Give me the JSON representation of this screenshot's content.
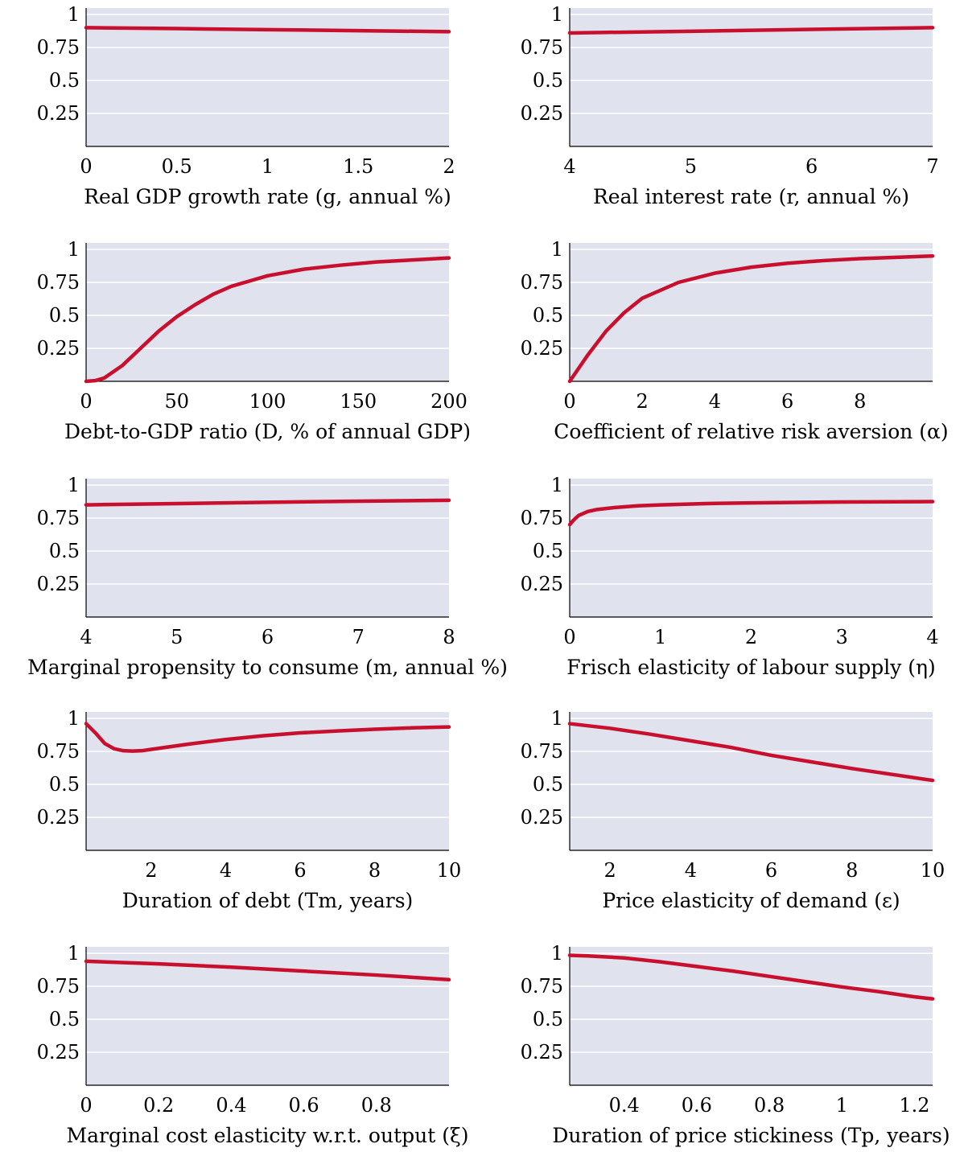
{
  "colors": {
    "line": "#c8102e",
    "panel_bg": "#e0e2ee",
    "grid": "#ffffff"
  },
  "chart_data": [
    {
      "type": "line",
      "xlabel": "Real GDP growth rate (g, annual %)",
      "xlim": [
        0,
        2
      ],
      "ylim": [
        0,
        1
      ],
      "x_ticks": [
        0,
        0.5,
        1,
        1.5,
        2
      ],
      "x_tick_labels": [
        "0",
        "0.5",
        "1",
        "1.5",
        "2"
      ],
      "y_ticks": [
        0.25,
        0.5,
        0.75,
        1
      ],
      "y_tick_labels": [
        "0.25",
        "0.5",
        "0.75",
        "1"
      ],
      "grid": true,
      "series": [
        {
          "x": [
            0,
            0.5,
            1,
            1.5,
            2
          ],
          "y": [
            0.9,
            0.893,
            0.885,
            0.877,
            0.87
          ]
        }
      ]
    },
    {
      "type": "line",
      "xlabel": "Real interest rate (r, annual %)",
      "xlim": [
        4,
        7
      ],
      "ylim": [
        0,
        1
      ],
      "x_ticks": [
        4,
        5,
        6,
        7
      ],
      "x_tick_labels": [
        "4",
        "5",
        "6",
        "7"
      ],
      "y_ticks": [
        0.25,
        0.5,
        0.75,
        1
      ],
      "y_tick_labels": [
        "0.25",
        "0.5",
        "0.75",
        "1"
      ],
      "grid": true,
      "series": [
        {
          "x": [
            4,
            5,
            6,
            7
          ],
          "y": [
            0.86,
            0.873,
            0.887,
            0.9
          ]
        }
      ]
    },
    {
      "type": "line",
      "xlabel": "Debt-to-GDP ratio (D, % of annual GDP)",
      "xlim": [
        0,
        200
      ],
      "ylim": [
        0,
        1
      ],
      "x_ticks": [
        0,
        50,
        100,
        150,
        200
      ],
      "x_tick_labels": [
        "0",
        "50",
        "100",
        "150",
        "200"
      ],
      "y_ticks": [
        0.25,
        0.5,
        0.75,
        1
      ],
      "y_tick_labels": [
        "0.25",
        "0.5",
        "0.75",
        "1"
      ],
      "grid": true,
      "series": [
        {
          "x": [
            0,
            5,
            10,
            20,
            30,
            40,
            50,
            60,
            70,
            80,
            90,
            100,
            120,
            140,
            160,
            180,
            200
          ],
          "y": [
            0,
            0.005,
            0.025,
            0.12,
            0.25,
            0.38,
            0.49,
            0.58,
            0.66,
            0.72,
            0.76,
            0.8,
            0.85,
            0.88,
            0.905,
            0.92,
            0.935
          ]
        }
      ]
    },
    {
      "type": "line",
      "xlabel": "Coefficient of relative risk aversion (α)",
      "xlim": [
        0,
        10
      ],
      "ylim": [
        0,
        1
      ],
      "x_ticks": [
        0,
        2,
        4,
        6,
        8
      ],
      "x_tick_labels": [
        "0",
        "2",
        "4",
        "6",
        "8"
      ],
      "y_ticks": [
        0.25,
        0.5,
        0.75,
        1
      ],
      "y_tick_labels": [
        "0.25",
        "0.5",
        "0.75",
        "1"
      ],
      "grid": true,
      "series": [
        {
          "x": [
            0,
            0.25,
            0.5,
            1,
            1.5,
            2,
            3,
            4,
            5,
            6,
            7,
            8,
            9,
            10
          ],
          "y": [
            0,
            0.1,
            0.2,
            0.38,
            0.52,
            0.63,
            0.75,
            0.82,
            0.865,
            0.895,
            0.915,
            0.93,
            0.94,
            0.95
          ]
        }
      ]
    },
    {
      "type": "line",
      "xlabel": "Marginal propensity to consume (m, annual %)",
      "xlim": [
        4,
        8
      ],
      "ylim": [
        0,
        1
      ],
      "x_ticks": [
        4,
        5,
        6,
        7,
        8
      ],
      "x_tick_labels": [
        "4",
        "5",
        "6",
        "7",
        "8"
      ],
      "y_ticks": [
        0.25,
        0.5,
        0.75,
        1
      ],
      "y_tick_labels": [
        "0.25",
        "0.5",
        "0.75",
        "1"
      ],
      "grid": true,
      "series": [
        {
          "x": [
            4,
            5,
            6,
            7,
            8
          ],
          "y": [
            0.85,
            0.86,
            0.87,
            0.878,
            0.885
          ]
        }
      ]
    },
    {
      "type": "line",
      "xlabel": "Frisch elasticity of labour supply (η)",
      "xlim": [
        0,
        4
      ],
      "ylim": [
        0,
        1
      ],
      "x_ticks": [
        0,
        1,
        2,
        3,
        4
      ],
      "x_tick_labels": [
        "0",
        "1",
        "2",
        "3",
        "4"
      ],
      "y_ticks": [
        0.25,
        0.5,
        0.75,
        1
      ],
      "y_tick_labels": [
        "0.25",
        "0.5",
        "0.75",
        "1"
      ],
      "grid": true,
      "series": [
        {
          "x": [
            0,
            0.05,
            0.1,
            0.2,
            0.3,
            0.5,
            0.75,
            1,
            1.5,
            2,
            3,
            4
          ],
          "y": [
            0.7,
            0.74,
            0.77,
            0.8,
            0.815,
            0.83,
            0.843,
            0.85,
            0.86,
            0.865,
            0.872,
            0.875
          ]
        }
      ]
    },
    {
      "type": "line",
      "xlabel": "Duration of debt (Tm, years)",
      "xlim": [
        0.25,
        10
      ],
      "ylim": [
        0,
        1
      ],
      "x_ticks": [
        2,
        4,
        6,
        8,
        10
      ],
      "x_tick_labels": [
        "2",
        "4",
        "6",
        "8",
        "10"
      ],
      "y_ticks": [
        0.25,
        0.5,
        0.75,
        1
      ],
      "y_tick_labels": [
        "0.25",
        "0.5",
        "0.75",
        "1"
      ],
      "grid": true,
      "series": [
        {
          "x": [
            0.25,
            0.5,
            0.75,
            1,
            1.25,
            1.5,
            1.75,
            2,
            3,
            4,
            5,
            6,
            7,
            8,
            9,
            10
          ],
          "y": [
            0.96,
            0.89,
            0.81,
            0.77,
            0.755,
            0.752,
            0.755,
            0.765,
            0.805,
            0.84,
            0.868,
            0.89,
            0.905,
            0.918,
            0.928,
            0.935
          ]
        }
      ]
    },
    {
      "type": "line",
      "xlabel": "Price elasticity of demand (ε)",
      "xlim": [
        1,
        10
      ],
      "ylim": [
        0,
        1
      ],
      "x_ticks": [
        2,
        4,
        6,
        8,
        10
      ],
      "x_tick_labels": [
        "2",
        "4",
        "6",
        "8",
        "10"
      ],
      "y_ticks": [
        0.25,
        0.5,
        0.75,
        1
      ],
      "y_tick_labels": [
        "0.25",
        "0.5",
        "0.75",
        "1"
      ],
      "grid": true,
      "series": [
        {
          "x": [
            1,
            2,
            3,
            4,
            5,
            6,
            7,
            8,
            9,
            10
          ],
          "y": [
            0.96,
            0.925,
            0.88,
            0.83,
            0.78,
            0.72,
            0.67,
            0.62,
            0.575,
            0.53
          ]
        }
      ]
    },
    {
      "type": "line",
      "xlabel": "Marginal cost elasticity w.r.t. output (ξ)",
      "xlim": [
        0,
        1
      ],
      "ylim": [
        0,
        1
      ],
      "x_ticks": [
        0,
        0.2,
        0.4,
        0.6,
        0.8
      ],
      "x_tick_labels": [
        "0",
        "0.2",
        "0.4",
        "0.6",
        "0.8"
      ],
      "y_ticks": [
        0.25,
        0.5,
        0.75,
        1
      ],
      "y_tick_labels": [
        "0.25",
        "0.5",
        "0.75",
        "1"
      ],
      "grid": true,
      "series": [
        {
          "x": [
            0,
            0.2,
            0.4,
            0.6,
            0.8,
            1
          ],
          "y": [
            0.94,
            0.92,
            0.895,
            0.865,
            0.835,
            0.8
          ]
        }
      ]
    },
    {
      "type": "line",
      "xlabel": "Duration of price stickiness (Tp, years)",
      "xlim": [
        0.25,
        1.25
      ],
      "ylim": [
        0,
        1
      ],
      "x_ticks": [
        0.4,
        0.6,
        0.8,
        1,
        1.2
      ],
      "x_tick_labels": [
        "0.4",
        "0.6",
        "0.8",
        "1",
        "1.2"
      ],
      "y_ticks": [
        0.25,
        0.5,
        0.75,
        1
      ],
      "y_tick_labels": [
        "0.25",
        "0.5",
        "0.75",
        "1"
      ],
      "grid": true,
      "series": [
        {
          "x": [
            0.25,
            0.3,
            0.4,
            0.5,
            0.6,
            0.7,
            0.8,
            0.9,
            1,
            1.1,
            1.2,
            1.25
          ],
          "y": [
            0.985,
            0.98,
            0.965,
            0.935,
            0.9,
            0.865,
            0.825,
            0.785,
            0.745,
            0.71,
            0.67,
            0.655
          ]
        }
      ]
    }
  ]
}
